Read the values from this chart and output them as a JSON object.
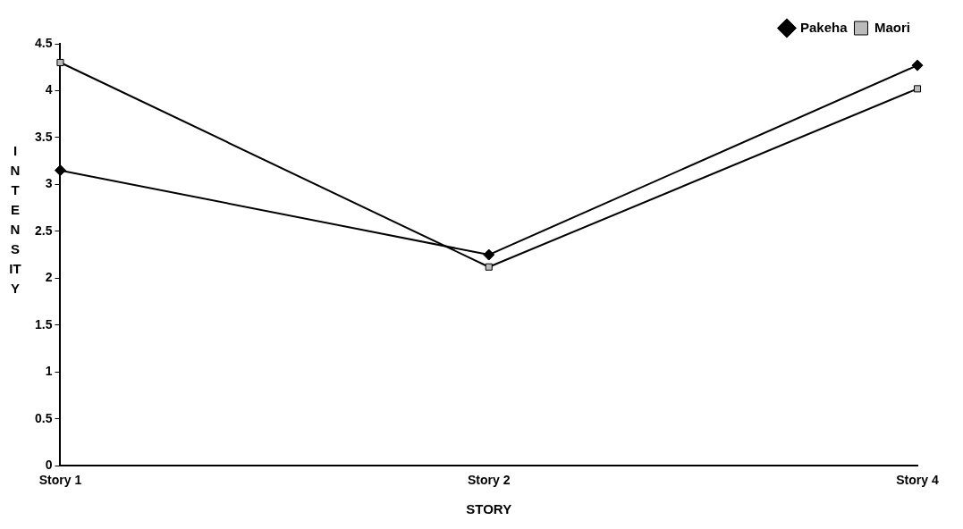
{
  "chart_data": {
    "type": "line",
    "xlabel": "STORY",
    "ylabel": "INTENSITY",
    "categories": [
      "Story 1",
      "Story 2",
      "Story 4"
    ],
    "series": [
      {
        "name": "Pakeha",
        "color": "#000000",
        "marker": "diamond",
        "values": [
          3.15,
          2.25,
          4.27
        ]
      },
      {
        "name": "Maori",
        "color": "#000000",
        "marker": "square",
        "values": [
          4.3,
          2.12,
          4.02
        ]
      }
    ],
    "ylim": [
      0,
      4.5
    ],
    "yticks": [
      0,
      0.5,
      1,
      1.5,
      2,
      2.5,
      3,
      3.5,
      4,
      4.5
    ],
    "grid": false,
    "legend": "top right"
  }
}
